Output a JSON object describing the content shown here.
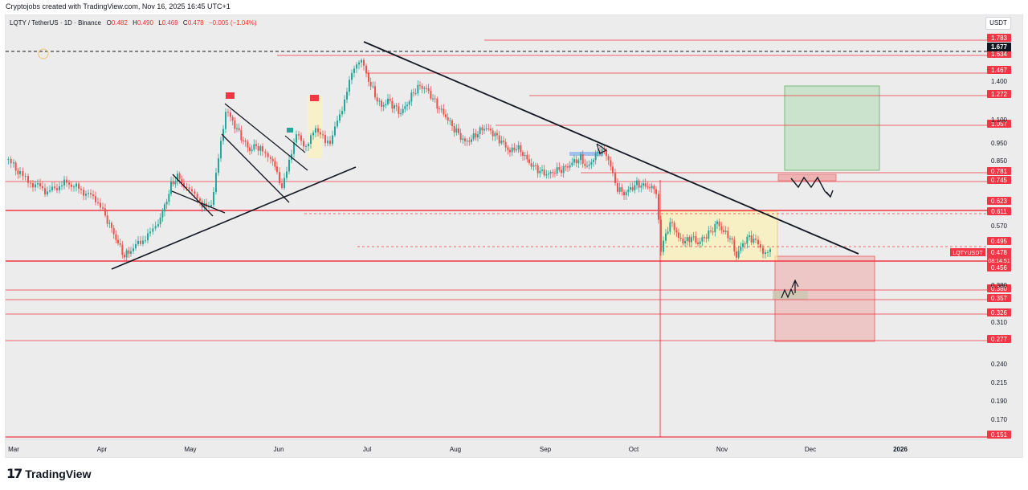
{
  "header": {
    "caption": "Cryptojobs created with TradingView.com, Nov 16, 2025 16:45 UTC+1"
  },
  "legend": {
    "symbol": "LQTY / TetherUS · 1D · Binance",
    "o_label": "O",
    "o_value": "0.482",
    "h_label": "H",
    "h_value": "0.490",
    "l_label": "L",
    "l_value": "0.469",
    "c_label": "C",
    "c_value": "0.478",
    "change": "−0.005 (−1.04%)"
  },
  "currency_button": "USDT",
  "price_axis": {
    "plain_ticks": [
      "1.400",
      "1.100",
      "0.950",
      "0.850",
      "0.570",
      "0.380",
      "0.310",
      "0.240",
      "0.215",
      "0.190",
      "0.170"
    ],
    "level_tags": [
      "1.783",
      "1.634",
      "1.467",
      "1.272",
      "1.057",
      "0.781",
      "0.745",
      "0.623",
      "0.611",
      "0.495",
      "0.456",
      "0.380",
      "0.357",
      "0.326",
      "0.277",
      "0.151"
    ],
    "crosshair_price": "1.677",
    "symbol_tag": "LQTYUSDT",
    "last_price": "0.478",
    "countdown": "08:14:51"
  },
  "time_axis": [
    "Mar",
    "Apr",
    "May",
    "Jun",
    "Jul",
    "Aug",
    "Sep",
    "Oct",
    "Nov",
    "Dec",
    "2026"
  ],
  "footer": {
    "brand": "TradingView"
  },
  "colors": {
    "up": "#26a69a",
    "down": "#ef5350",
    "level_line": "#f23645",
    "trendline": "#131722",
    "target_zone": "#a5d6a7",
    "stop_zone": "#ef9a9a",
    "range_box": "#fff3b0"
  }
}
